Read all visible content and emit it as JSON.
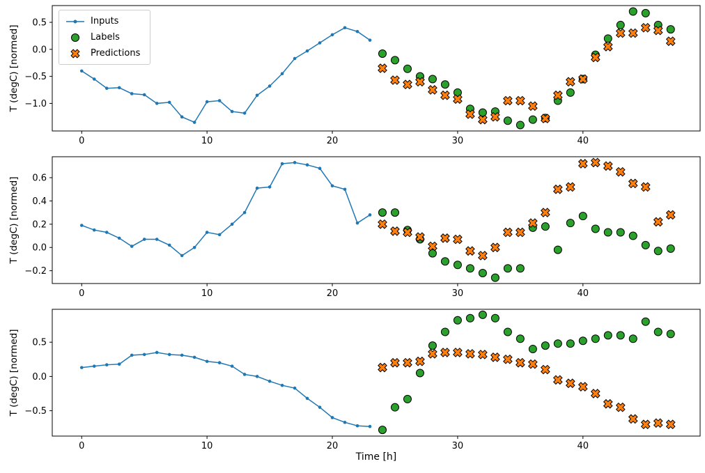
{
  "figure": {
    "xlabel": "Time [h]",
    "ylabel": "T (degC) [normed]",
    "legend": {
      "inputs": "Inputs",
      "labels": "Labels",
      "predictions": "Predictions"
    },
    "colors": {
      "inputs": "#1f77b4",
      "labels": "#2ca02c",
      "predictions": "#ff7f0e",
      "marker_edge": "#000000",
      "axes_edge": "#000000"
    }
  },
  "chart_data": [
    {
      "type": "line",
      "subplot": 1,
      "title": "",
      "xlabel": "",
      "ylabel": "T (degC) [normed]",
      "xlim": [
        -2.35,
        49.35
      ],
      "ylim": [
        -1.51,
        0.81
      ],
      "xticks": [
        0,
        10,
        20,
        30,
        40
      ],
      "yticks": [
        -1.0,
        -0.5,
        0.0,
        0.5
      ],
      "grid": false,
      "legend_position": "upper left",
      "series": [
        {
          "name": "Inputs",
          "type": "line",
          "marker": "point",
          "x": [
            0,
            1,
            2,
            3,
            4,
            5,
            6,
            7,
            8,
            9,
            10,
            11,
            12,
            13,
            14,
            15,
            16,
            17,
            18,
            19,
            20,
            21,
            22,
            23
          ],
          "y": [
            -0.4,
            -0.55,
            -0.72,
            -0.71,
            -0.82,
            -0.84,
            -1.0,
            -0.98,
            -1.25,
            -1.35,
            -0.97,
            -0.95,
            -1.15,
            -1.18,
            -0.85,
            -0.68,
            -0.45,
            -0.17,
            -0.03,
            0.12,
            0.27,
            0.4,
            0.33,
            0.17
          ]
        },
        {
          "name": "Labels",
          "type": "scatter",
          "marker": "circle",
          "x": [
            24,
            25,
            26,
            27,
            28,
            29,
            30,
            31,
            32,
            33,
            34,
            35,
            36,
            37,
            38,
            39,
            40,
            41,
            42,
            43,
            44,
            45,
            46,
            47
          ],
          "y": [
            -0.08,
            -0.2,
            -0.36,
            -0.5,
            -0.55,
            -0.65,
            -0.8,
            -1.1,
            -1.17,
            -1.15,
            -1.32,
            -1.4,
            -1.3,
            -1.27,
            -0.95,
            -0.8,
            -0.55,
            -0.1,
            0.2,
            0.45,
            0.7,
            0.67,
            0.45,
            0.37
          ]
        },
        {
          "name": "Predictions",
          "type": "scatter",
          "marker": "X",
          "x": [
            24,
            25,
            26,
            27,
            28,
            29,
            30,
            31,
            32,
            33,
            34,
            35,
            36,
            37,
            38,
            39,
            40,
            41,
            42,
            43,
            44,
            45,
            46,
            47
          ],
          "y": [
            -0.35,
            -0.57,
            -0.65,
            -0.6,
            -0.75,
            -0.85,
            -0.92,
            -1.2,
            -1.3,
            -1.25,
            -0.95,
            -0.95,
            -1.05,
            -1.28,
            -0.85,
            -0.6,
            -0.55,
            -0.15,
            0.05,
            0.3,
            0.3,
            0.4,
            0.35,
            0.15
          ]
        }
      ]
    },
    {
      "type": "line",
      "subplot": 2,
      "title": "",
      "xlabel": "",
      "ylabel": "T (degC) [normed]",
      "xlim": [
        -2.35,
        49.35
      ],
      "ylim": [
        -0.31,
        0.78
      ],
      "xticks": [
        0,
        10,
        20,
        30,
        40
      ],
      "yticks": [
        -0.2,
        0.0,
        0.2,
        0.4,
        0.6
      ],
      "grid": false,
      "series": [
        {
          "name": "Inputs",
          "type": "line",
          "marker": "point",
          "x": [
            0,
            1,
            2,
            3,
            4,
            5,
            6,
            7,
            8,
            9,
            10,
            11,
            12,
            13,
            14,
            15,
            16,
            17,
            18,
            19,
            20,
            21,
            22,
            23
          ],
          "y": [
            0.19,
            0.15,
            0.13,
            0.08,
            0.01,
            0.07,
            0.07,
            0.02,
            -0.07,
            0.0,
            0.13,
            0.11,
            0.2,
            0.3,
            0.51,
            0.52,
            0.72,
            0.73,
            0.71,
            0.68,
            0.53,
            0.5,
            0.21,
            0.28
          ]
        },
        {
          "name": "Labels",
          "type": "scatter",
          "marker": "circle",
          "x": [
            24,
            25,
            26,
            27,
            28,
            29,
            30,
            31,
            32,
            33,
            34,
            35,
            36,
            37,
            38,
            39,
            40,
            41,
            42,
            43,
            44,
            45,
            46,
            47
          ],
          "y": [
            0.3,
            0.3,
            0.15,
            0.07,
            -0.05,
            -0.12,
            -0.15,
            -0.18,
            -0.22,
            -0.26,
            -0.18,
            -0.18,
            0.17,
            0.18,
            -0.02,
            0.21,
            0.27,
            0.16,
            0.13,
            0.13,
            0.1,
            0.02,
            -0.03,
            -0.01
          ]
        },
        {
          "name": "Predictions",
          "type": "scatter",
          "marker": "X",
          "x": [
            24,
            25,
            26,
            27,
            28,
            29,
            30,
            31,
            32,
            33,
            34,
            35,
            36,
            37,
            38,
            39,
            40,
            41,
            42,
            43,
            44,
            45,
            46,
            47
          ],
          "y": [
            0.2,
            0.14,
            0.13,
            0.09,
            0.01,
            0.08,
            0.07,
            -0.03,
            -0.07,
            0.0,
            0.13,
            0.13,
            0.21,
            0.3,
            0.5,
            0.52,
            0.72,
            0.73,
            0.7,
            0.65,
            0.55,
            0.52,
            0.22,
            0.28
          ]
        }
      ]
    },
    {
      "type": "line",
      "subplot": 3,
      "title": "",
      "xlabel": "Time [h]",
      "ylabel": "T (degC) [normed]",
      "xlim": [
        -2.35,
        49.35
      ],
      "ylim": [
        -0.87,
        0.98
      ],
      "xticks": [
        0,
        10,
        20,
        30,
        40
      ],
      "yticks": [
        -0.5,
        0.0,
        0.5
      ],
      "grid": false,
      "series": [
        {
          "name": "Inputs",
          "type": "line",
          "marker": "point",
          "x": [
            0,
            1,
            2,
            3,
            4,
            5,
            6,
            7,
            8,
            9,
            10,
            11,
            12,
            13,
            14,
            15,
            16,
            17,
            18,
            19,
            20,
            21,
            22,
            23
          ],
          "y": [
            0.13,
            0.15,
            0.17,
            0.18,
            0.31,
            0.32,
            0.35,
            0.32,
            0.31,
            0.28,
            0.22,
            0.2,
            0.15,
            0.03,
            0.0,
            -0.07,
            -0.13,
            -0.17,
            -0.32,
            -0.45,
            -0.6,
            -0.67,
            -0.72,
            -0.73
          ]
        },
        {
          "name": "Labels",
          "type": "scatter",
          "marker": "circle",
          "x": [
            24,
            25,
            26,
            27,
            28,
            29,
            30,
            31,
            32,
            33,
            34,
            35,
            36,
            37,
            38,
            39,
            40,
            41,
            42,
            43,
            44,
            45,
            46,
            47
          ],
          "y": [
            -0.78,
            -0.45,
            -0.33,
            0.05,
            0.45,
            0.65,
            0.82,
            0.85,
            0.9,
            0.85,
            0.65,
            0.55,
            0.4,
            0.45,
            0.48,
            0.48,
            0.52,
            0.55,
            0.6,
            0.6,
            0.55,
            0.8,
            0.65,
            0.62
          ]
        },
        {
          "name": "Predictions",
          "type": "scatter",
          "marker": "X",
          "x": [
            24,
            25,
            26,
            27,
            28,
            29,
            30,
            31,
            32,
            33,
            34,
            35,
            36,
            37,
            38,
            39,
            40,
            41,
            42,
            43,
            44,
            45,
            46,
            47
          ],
          "y": [
            0.13,
            0.2,
            0.2,
            0.22,
            0.33,
            0.35,
            0.35,
            0.33,
            0.32,
            0.28,
            0.25,
            0.2,
            0.18,
            0.1,
            -0.05,
            -0.1,
            -0.15,
            -0.25,
            -0.4,
            -0.45,
            -0.62,
            -0.7,
            -0.68,
            -0.7
          ]
        }
      ]
    }
  ]
}
